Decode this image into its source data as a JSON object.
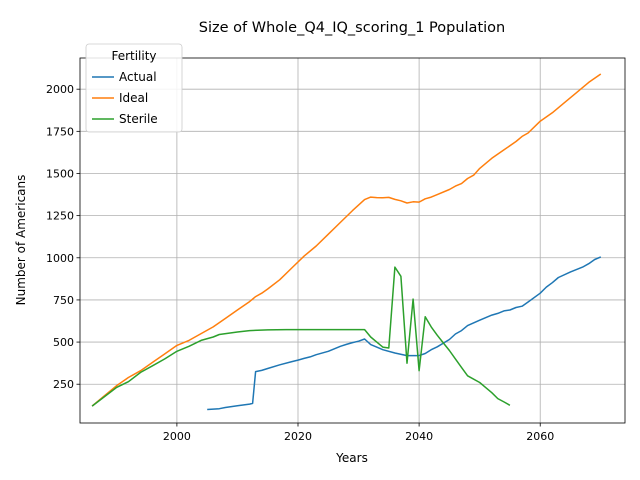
{
  "chart_data": {
    "type": "line",
    "title": "Size of Whole_Q4_IQ_scoring_1 Population",
    "xlabel": "Years",
    "ylabel": "Number of Americans",
    "xlim": [
      1984,
      2074
    ],
    "ylim": [
      20,
      2185
    ],
    "xticks": [
      2000,
      2020,
      2040,
      2060
    ],
    "yticks": [
      250,
      500,
      750,
      1000,
      1250,
      1500,
      1750,
      2000
    ],
    "grid": true,
    "legend": {
      "title": "Fertility",
      "position": "top-left"
    },
    "series": [
      {
        "name": "Actual",
        "color": "#1f77b4",
        "x": [
          2005,
          2007,
          2008,
          2010,
          2012,
          2012.5,
          2013,
          2014,
          2015,
          2017,
          2019,
          2020,
          2021,
          2022,
          2023,
          2025,
          2027,
          2028,
          2029,
          2030,
          2031,
          2032,
          2034,
          2036,
          2038,
          2040,
          2041,
          2042,
          2043,
          2045,
          2046,
          2047,
          2048,
          2050,
          2052,
          2053,
          2054,
          2055,
          2056,
          2057,
          2058,
          2060,
          2061,
          2062,
          2063,
          2065,
          2067,
          2068,
          2069,
          2070
        ],
        "y": [
          100,
          105,
          112,
          122,
          132,
          136,
          325,
          332,
          343,
          365,
          384,
          393,
          403,
          412,
          425,
          445,
          475,
          486,
          497,
          505,
          518,
          485,
          455,
          435,
          420,
          420,
          432,
          455,
          472,
          515,
          548,
          568,
          598,
          630,
          660,
          670,
          685,
          690,
          705,
          713,
          738,
          790,
          826,
          852,
          883,
          916,
          945,
          965,
          990,
          1005
        ]
      },
      {
        "name": "Ideal",
        "color": "#ff7f0e",
        "x": [
          1986,
          1988,
          1990,
          1992,
          1994,
          1996,
          1998,
          2000,
          2002,
          2004,
          2006,
          2008,
          2010,
          2012,
          2013,
          2014,
          2015,
          2017,
          2019,
          2021,
          2023,
          2025,
          2027,
          2029,
          2031,
          2032,
          2033,
          2034,
          2035,
          2036,
          2037,
          2038,
          2039,
          2040,
          2041,
          2042,
          2043,
          2045,
          2046,
          2047,
          2048,
          2049,
          2050,
          2052,
          2054,
          2056,
          2057,
          2058,
          2060,
          2062,
          2064,
          2066,
          2068,
          2070
        ],
        "y": [
          120,
          180,
          240,
          290,
          330,
          380,
          430,
          480,
          510,
          550,
          590,
          640,
          690,
          740,
          770,
          790,
          815,
          870,
          940,
          1010,
          1070,
          1140,
          1210,
          1280,
          1345,
          1360,
          1357,
          1356,
          1358,
          1346,
          1338,
          1325,
          1332,
          1330,
          1350,
          1360,
          1375,
          1405,
          1425,
          1440,
          1470,
          1490,
          1530,
          1590,
          1640,
          1690,
          1720,
          1740,
          1810,
          1860,
          1920,
          1980,
          2040,
          2090
        ]
      },
      {
        "name": "Sterile",
        "color": "#2ca02c",
        "x": [
          1986,
          1988,
          1990,
          1992,
          1994,
          1996,
          1998,
          2000,
          2002,
          2004,
          2006,
          2007,
          2010,
          2012,
          2015,
          2018,
          2020,
          2025,
          2031,
          2032,
          2034,
          2035,
          2036,
          2037,
          2038,
          2039,
          2040,
          2041,
          2042,
          2043,
          2044,
          2045,
          2046,
          2047,
          2048,
          2050,
          2051,
          2052,
          2053,
          2054,
          2055
        ],
        "y": [
          120,
          175,
          230,
          265,
          320,
          360,
          400,
          445,
          475,
          510,
          530,
          545,
          560,
          568,
          572,
          574,
          574,
          574,
          574,
          530,
          470,
          465,
          945,
          890,
          375,
          755,
          330,
          650,
          590,
          540,
          495,
          450,
          400,
          350,
          300,
          260,
          230,
          200,
          165,
          145,
          125
        ]
      }
    ]
  }
}
